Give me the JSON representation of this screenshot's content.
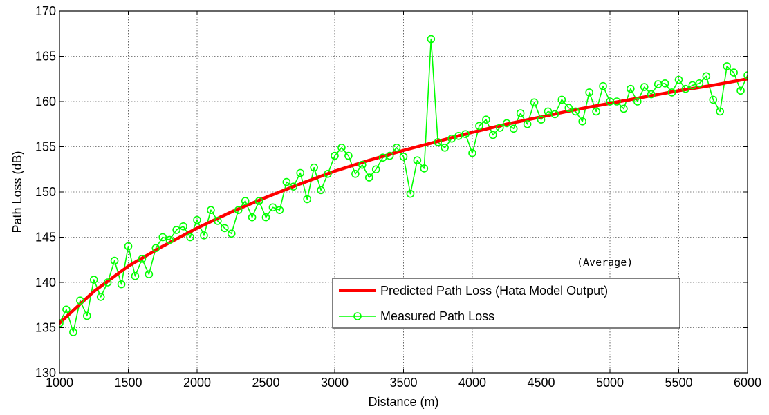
{
  "chart_data": {
    "type": "line",
    "title": "",
    "xlabel": "Distance (m)",
    "ylabel": "Path Loss (dB)",
    "xlim": [
      1000,
      6000
    ],
    "ylim": [
      130,
      170
    ],
    "xticks": [
      1000,
      1500,
      2000,
      2500,
      3000,
      3500,
      4000,
      4500,
      5000,
      5500,
      6000
    ],
    "yticks": [
      130,
      135,
      140,
      145,
      150,
      155,
      160,
      165,
      170
    ],
    "grid": true,
    "legend_position": "bottom-right",
    "annotation": "(Average)",
    "series": [
      {
        "name": "Predicted Path Loss (Hata Model Output)",
        "color": "#ff0000",
        "marker": "none",
        "x": [
          1000,
          1250,
          1500,
          1750,
          2000,
          2250,
          2500,
          2750,
          3000,
          3250,
          3500,
          3750,
          4000,
          4250,
          4500,
          4750,
          5000,
          5250,
          5500,
          5750,
          6000
        ],
        "y": [
          135.5,
          139.0,
          141.8,
          144.0,
          146.0,
          147.8,
          149.4,
          150.9,
          152.3,
          153.5,
          154.6,
          155.6,
          156.6,
          157.5,
          158.3,
          159.1,
          159.8,
          160.5,
          161.2,
          161.8,
          162.5
        ]
      },
      {
        "name": "Measured Path Loss",
        "color": "#00ff00",
        "marker": "circle",
        "x": [
          1000,
          1050,
          1100,
          1150,
          1200,
          1250,
          1300,
          1350,
          1400,
          1450,
          1500,
          1550,
          1600,
          1650,
          1700,
          1750,
          1800,
          1850,
          1900,
          1950,
          2000,
          2050,
          2100,
          2150,
          2200,
          2250,
          2300,
          2350,
          2400,
          2450,
          2500,
          2550,
          2600,
          2650,
          2700,
          2750,
          2800,
          2850,
          2900,
          2950,
          3000,
          3050,
          3100,
          3150,
          3200,
          3250,
          3300,
          3350,
          3400,
          3450,
          3500,
          3550,
          3600,
          3650,
          3700,
          3750,
          3800,
          3850,
          3900,
          3950,
          4000,
          4050,
          4100,
          4150,
          4200,
          4250,
          4300,
          4350,
          4400,
          4450,
          4500,
          4550,
          4600,
          4650,
          4700,
          4750,
          4800,
          4850,
          4900,
          4950,
          5000,
          5050,
          5100,
          5150,
          5200,
          5250,
          5300,
          5350,
          5400,
          5450,
          5500,
          5550,
          5600,
          5650,
          5700,
          5750,
          5800,
          5850,
          5900,
          5950,
          6000
        ],
        "y": [
          135.5,
          137.0,
          134.5,
          138.0,
          136.3,
          140.3,
          138.4,
          140.0,
          142.4,
          139.8,
          144.0,
          140.7,
          142.6,
          140.9,
          143.8,
          145.0,
          144.7,
          145.8,
          146.2,
          145.0,
          146.9,
          145.2,
          148.0,
          146.8,
          146.0,
          145.4,
          148.0,
          149.0,
          147.2,
          149.0,
          147.2,
          148.3,
          148.0,
          151.1,
          150.6,
          152.1,
          149.2,
          152.7,
          150.2,
          152.0,
          154.0,
          154.9,
          154.0,
          152.0,
          153.0,
          151.6,
          152.5,
          153.8,
          154.0,
          154.9,
          153.9,
          149.8,
          153.5,
          152.6,
          166.9,
          155.5,
          154.9,
          155.9,
          156.2,
          156.4,
          154.3,
          157.3,
          158.0,
          156.3,
          157.1,
          157.6,
          157.0,
          158.7,
          157.5,
          159.9,
          158.0,
          158.9,
          158.6,
          160.2,
          159.3,
          158.9,
          157.8,
          161.0,
          158.9,
          161.7,
          160.0,
          160.0,
          159.2,
          161.4,
          160.0,
          161.6,
          160.8,
          161.9,
          162.0,
          161.0,
          162.4,
          161.4,
          161.8,
          162.0,
          162.8,
          160.2,
          158.9,
          163.9,
          163.2,
          161.2,
          162.9
        ]
      }
    ]
  }
}
